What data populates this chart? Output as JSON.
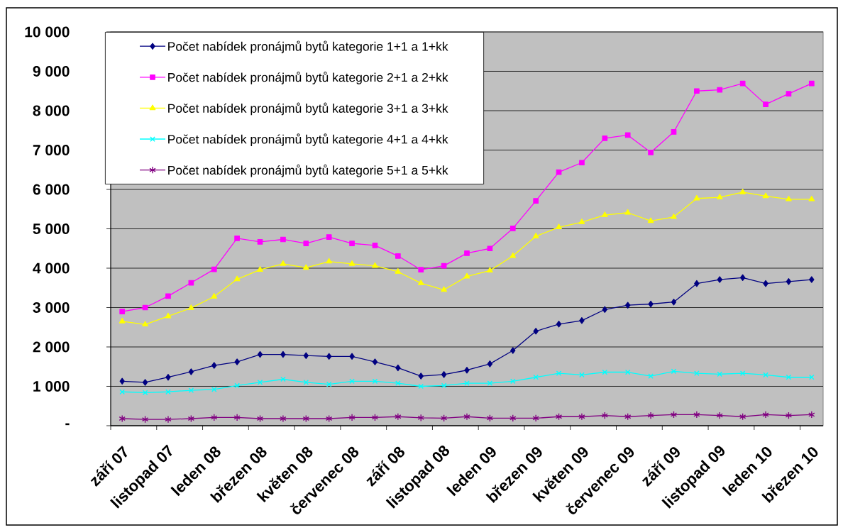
{
  "chart_data": {
    "type": "line",
    "categories": [
      "září 07",
      null,
      "listopad 07",
      null,
      "leden 08",
      null,
      "březen 08",
      null,
      "květen 08",
      null,
      "červenec 08",
      null,
      "září 08",
      null,
      "listopad 08",
      null,
      "leden 09",
      null,
      "březen 09",
      null,
      "květen 09",
      null,
      "červenec 09",
      null,
      "září 09",
      null,
      "listopad 09",
      null,
      "leden 10",
      null,
      "březen 10"
    ],
    "series": [
      {
        "name": "Počet nabídek pronájmů bytů kategorie 1+1 a 1+kk",
        "color": "#000080",
        "marker": "diamond",
        "values": [
          1130,
          1100,
          1230,
          1370,
          1530,
          1620,
          1810,
          1810,
          1780,
          1760,
          1760,
          1620,
          1470,
          1260,
          1300,
          1410,
          1570,
          1910,
          2400,
          2580,
          2670,
          2950,
          3060,
          3090,
          3140,
          3610,
          3710,
          3760,
          3610,
          3660,
          3710
        ]
      },
      {
        "name": "Počet nabídek pronájmů bytů kategorie 2+1 a 2+kk",
        "color": "#ff00ff",
        "marker": "square",
        "values": [
          2900,
          3000,
          3290,
          3630,
          3970,
          4760,
          4670,
          4730,
          4630,
          4790,
          4630,
          4580,
          4310,
          3960,
          4060,
          4380,
          4500,
          5010,
          5710,
          6440,
          6680,
          7300,
          7380,
          6940,
          7460,
          8500,
          8530,
          8690,
          8160,
          8430,
          8690
        ]
      },
      {
        "name": "Počet nabídek pronájmů bytů kategorie 3+1 a 3+kk",
        "color": "#ffff00",
        "marker": "triangle",
        "values": [
          2650,
          2570,
          2780,
          2990,
          3280,
          3720,
          3960,
          4110,
          4010,
          4170,
          4110,
          4060,
          3910,
          3620,
          3450,
          3790,
          3940,
          4310,
          4810,
          5040,
          5170,
          5350,
          5410,
          5200,
          5300,
          5770,
          5800,
          5930,
          5830,
          5750,
          5750
        ]
      },
      {
        "name": "Počet nabídek pronájmů bytů kategorie 4+1 a 4+kk",
        "color": "#00ffff",
        "marker": "cross",
        "values": [
          860,
          840,
          860,
          900,
          920,
          1020,
          1100,
          1180,
          1100,
          1050,
          1130,
          1130,
          1080,
          1000,
          1020,
          1080,
          1080,
          1130,
          1230,
          1330,
          1290,
          1360,
          1360,
          1260,
          1380,
          1330,
          1310,
          1330,
          1290,
          1230,
          1230
        ]
      },
      {
        "name": "Počet nabídek pronájmů bytů kategorie 5+1 a 5+kk",
        "color": "#800080",
        "marker": "star",
        "values": [
          180,
          160,
          160,
          180,
          210,
          210,
          180,
          180,
          180,
          180,
          210,
          210,
          230,
          200,
          190,
          230,
          190,
          190,
          190,
          230,
          230,
          260,
          230,
          260,
          280,
          280,
          260,
          230,
          280,
          260,
          280
        ]
      }
    ],
    "ylim": [
      0,
      10000
    ],
    "yticks": [
      {
        "value": 0,
        "label": "-"
      },
      {
        "value": 1000,
        "label": "1 000"
      },
      {
        "value": 2000,
        "label": "2 000"
      },
      {
        "value": 3000,
        "label": "3 000"
      },
      {
        "value": 4000,
        "label": "4 000"
      },
      {
        "value": 5000,
        "label": "5 000"
      },
      {
        "value": 6000,
        "label": "6 000"
      },
      {
        "value": 7000,
        "label": "7 000"
      },
      {
        "value": 8000,
        "label": "8 000"
      },
      {
        "value": 9000,
        "label": "9 000"
      },
      {
        "value": 10000,
        "label": "10 000"
      }
    ],
    "grid": "y",
    "legend": "top left"
  }
}
